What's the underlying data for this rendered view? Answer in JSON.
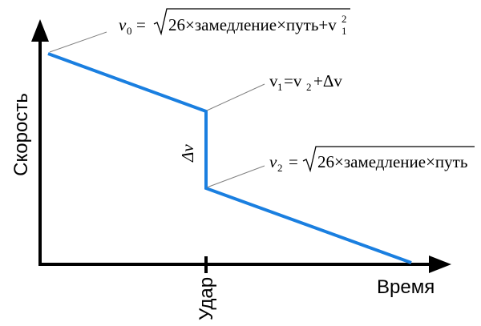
{
  "axes": {
    "y_label": "Скорость",
    "x_label": "Время",
    "x_tick_label": "Удар"
  },
  "colors": {
    "line": "#1a7fe0",
    "axis": "#000000",
    "leader": "#808080"
  },
  "annotations": {
    "v0": {
      "var": "v",
      "sub": "0",
      "eq": "=",
      "radicand": "26×замедление×путь+v",
      "r_sub": "1",
      "r_sup": "2"
    },
    "v1": {
      "var": "v",
      "sub": "1",
      "eq": "=v",
      "sub2": "2",
      "rest": "+Δv"
    },
    "v2": {
      "var": "v",
      "sub": "2",
      "eq": "=",
      "radicand": "26×замедление×путь"
    },
    "delta": "Δv"
  }
}
